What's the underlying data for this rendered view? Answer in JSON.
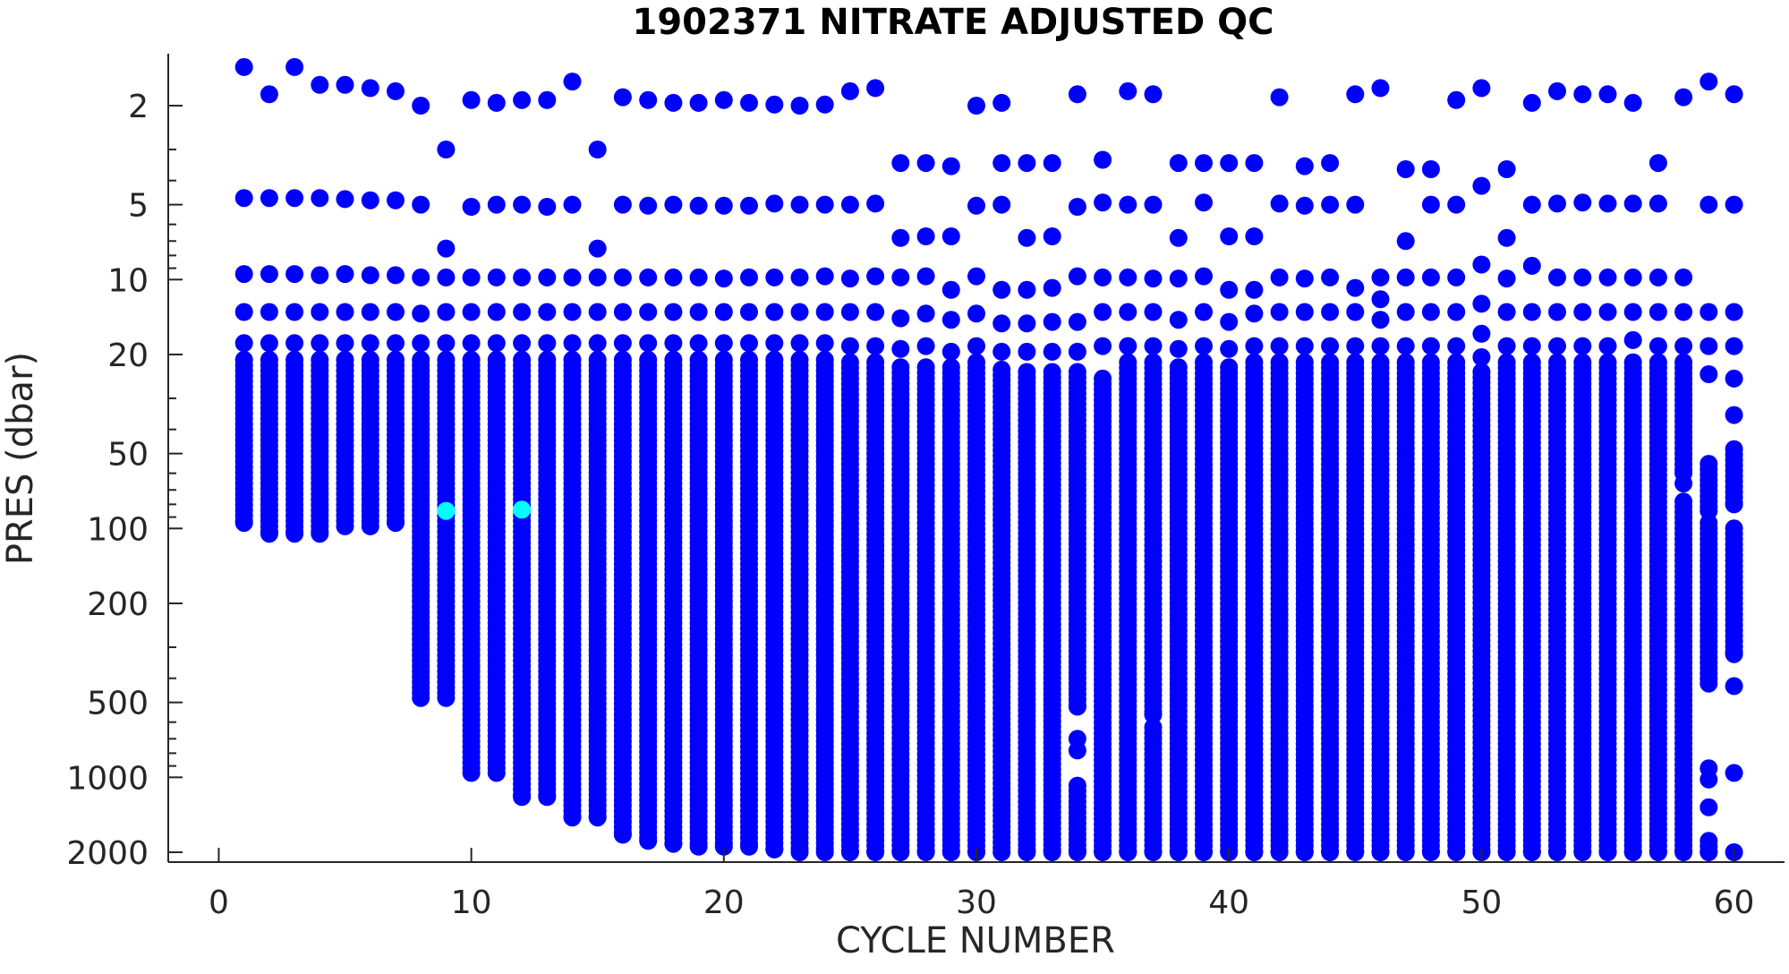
{
  "chart_data": {
    "type": "scatter",
    "title": "1902371  NITRATE ADJUSTED QC",
    "xlabel": "CYCLE NUMBER",
    "ylabel": "PRES (dbar)",
    "xlim": [
      -2,
      62
    ],
    "ylim": [
      1,
      2100
    ],
    "y_scale": "log",
    "y_reversed": true,
    "grid": false,
    "x_ticks": [
      0,
      10,
      20,
      30,
      40,
      50,
      60
    ],
    "x_tick_labels": [
      "0",
      "10",
      "20",
      "30",
      "40",
      "50",
      "60"
    ],
    "y_ticks": [
      2,
      5,
      10,
      20,
      50,
      100,
      200,
      500,
      1000,
      2000
    ],
    "y_tick_labels": [
      "2",
      "5",
      "10",
      "20",
      "50",
      "100",
      "200",
      "500",
      "1000",
      "2000"
    ],
    "colors": {
      "qc_good": "#0000ff",
      "qc_flagged": "#00ffff"
    },
    "profiles": [
      {
        "cycle": 1,
        "surface": [
          1.4,
          4.7
        ],
        "top": [
          9.5,
          13.5,
          18
        ],
        "dense": [
          21,
          95
        ]
      },
      {
        "cycle": 2,
        "surface": [
          1.8,
          4.7
        ],
        "top": [
          9.5,
          13.5,
          18
        ],
        "dense": [
          21,
          105
        ]
      },
      {
        "cycle": 3,
        "surface": [
          1.4,
          4.7
        ],
        "top": [
          9.5,
          13.5,
          18
        ],
        "dense": [
          21,
          105
        ]
      },
      {
        "cycle": 4,
        "surface": [
          1.65,
          4.7
        ],
        "top": [
          9.6,
          13.5,
          18
        ],
        "dense": [
          21,
          105
        ]
      },
      {
        "cycle": 5,
        "surface": [
          1.65,
          4.75
        ],
        "top": [
          9.5,
          13.5,
          18
        ],
        "dense": [
          21,
          98
        ]
      },
      {
        "cycle": 6,
        "surface": [
          1.7,
          4.8
        ],
        "top": [
          9.6,
          13.5,
          18
        ],
        "dense": [
          21,
          98
        ]
      },
      {
        "cycle": 7,
        "surface": [
          1.75,
          4.8
        ],
        "top": [
          9.6,
          13.5,
          18
        ],
        "dense": [
          21,
          95
        ]
      },
      {
        "cycle": 8,
        "surface": [
          2.0,
          5.0
        ],
        "top": [
          9.8,
          13.7,
          18
        ],
        "dense": [
          21,
          480
        ]
      },
      {
        "cycle": 9,
        "surface": [
          3.0,
          7.5
        ],
        "top": [
          9.8,
          13.5,
          18
        ],
        "dense": [
          21,
          480
        ]
      },
      {
        "cycle": 10,
        "surface": [
          1.9,
          5.1
        ],
        "top": [
          9.8,
          13.5,
          18
        ],
        "dense": [
          21,
          960
        ]
      },
      {
        "cycle": 11,
        "surface": [
          1.95,
          5.0
        ],
        "top": [
          9.8,
          13.5,
          18
        ],
        "dense": [
          21,
          960
        ]
      },
      {
        "cycle": 12,
        "surface": [
          1.9,
          5.0
        ],
        "top": [
          9.8,
          13.5,
          18
        ],
        "dense": [
          21,
          1200
        ]
      },
      {
        "cycle": 13,
        "surface": [
          1.9,
          5.1
        ],
        "top": [
          9.8,
          13.5,
          18
        ],
        "dense": [
          21,
          1200
        ]
      },
      {
        "cycle": 14,
        "surface": [
          1.6,
          5.0
        ],
        "top": [
          9.8,
          13.5,
          18
        ],
        "dense": [
          21,
          1450
        ]
      },
      {
        "cycle": 15,
        "surface": [
          3.0,
          7.5
        ],
        "top": [
          9.8,
          13.5,
          18
        ],
        "dense": [
          21,
          1450
        ]
      },
      {
        "cycle": 16,
        "surface": [
          1.85,
          5.0
        ],
        "top": [
          9.8,
          13.5,
          18
        ],
        "dense": [
          21,
          1700
        ]
      },
      {
        "cycle": 17,
        "surface": [
          1.9,
          5.05
        ],
        "top": [
          9.8,
          13.5,
          18
        ],
        "dense": [
          21,
          1800
        ]
      },
      {
        "cycle": 18,
        "surface": [
          1.95,
          5.0
        ],
        "top": [
          9.8,
          13.5,
          18
        ],
        "dense": [
          21,
          1850
        ]
      },
      {
        "cycle": 19,
        "surface": [
          1.95,
          5.05
        ],
        "top": [
          9.8,
          13.5,
          18
        ],
        "dense": [
          21,
          1900
        ]
      },
      {
        "cycle": 20,
        "surface": [
          1.9,
          5.05
        ],
        "top": [
          9.9,
          13.5,
          18
        ],
        "dense": [
          21,
          1900
        ]
      },
      {
        "cycle": 21,
        "surface": [
          1.95,
          5.05
        ],
        "top": [
          9.8,
          13.5,
          18
        ],
        "dense": [
          21,
          1900
        ]
      },
      {
        "cycle": 22,
        "surface": [
          1.98,
          4.95
        ],
        "top": [
          9.8,
          13.5,
          18
        ],
        "dense": [
          21,
          1950
        ]
      },
      {
        "cycle": 23,
        "surface": [
          2.0,
          5.0
        ],
        "top": [
          9.8,
          13.5,
          18
        ],
        "dense": [
          21,
          2000
        ]
      },
      {
        "cycle": 24,
        "surface": [
          1.98,
          5.0
        ],
        "top": [
          9.7,
          13.5,
          18
        ],
        "dense": [
          21,
          2000
        ]
      },
      {
        "cycle": 25,
        "surface": [
          1.75,
          5.0
        ],
        "top": [
          9.9,
          13.5,
          18.5
        ],
        "dense": [
          21.5,
          2000
        ]
      },
      {
        "cycle": 26,
        "surface": [
          1.7,
          4.95
        ],
        "top": [
          9.7,
          13.5,
          18.5
        ],
        "dense": [
          21.5,
          2000
        ]
      },
      {
        "cycle": 27,
        "surface": [
          3.4,
          6.8
        ],
        "top": [
          9.8,
          14.3,
          19
        ],
        "dense": [
          22.5,
          2000
        ]
      },
      {
        "cycle": 28,
        "surface": [
          3.4,
          6.7
        ],
        "top": [
          9.7,
          13.7,
          18.5
        ],
        "dense": [
          22.5,
          2000
        ]
      },
      {
        "cycle": 29,
        "surface": [
          3.5,
          6.7,
          11
        ],
        "top": [
          14.5,
          19.5
        ],
        "dense": [
          22.5,
          2000
        ]
      },
      {
        "cycle": 30,
        "surface": [
          2.0,
          5.05
        ],
        "top": [
          9.7,
          13.7,
          18.5
        ],
        "dense": [
          21.5,
          2000
        ]
      },
      {
        "cycle": 31,
        "surface": [
          1.95,
          5.0,
          3.4
        ],
        "top": [
          11,
          15,
          19.5
        ],
        "dense": [
          23,
          2000
        ]
      },
      {
        "cycle": 32,
        "surface": [
          3.4,
          6.8
        ],
        "top": [
          11,
          15,
          19.5
        ],
        "dense": [
          23.5,
          2000
        ]
      },
      {
        "cycle": 33,
        "surface": [
          3.4,
          6.7
        ],
        "top": [
          10.8,
          14.8,
          19.5
        ],
        "dense": [
          23.5,
          2000
        ]
      },
      {
        "cycle": 34,
        "surface": [
          1.8,
          5.1
        ],
        "top": [
          9.7,
          14.8,
          19.5
        ],
        "dense": [
          23.5,
          520
        ],
        "extra": [
          700,
          780
        ],
        "deep": [
          1080,
          2000
        ]
      },
      {
        "cycle": 35,
        "surface": [
          3.3,
          4.9
        ],
        "top": [
          9.8,
          13.5,
          18.5
        ],
        "dense": [
          25,
          2000
        ]
      },
      {
        "cycle": 36,
        "surface": [
          1.75,
          5.0
        ],
        "top": [
          9.8,
          13.5,
          18.5
        ],
        "dense": [
          21.5,
          2000
        ]
      },
      {
        "cycle": 37,
        "surface": [
          1.8,
          5.0
        ],
        "top": [
          9.9,
          13.5,
          18.5
        ],
        "dense": [
          21.5,
          560
        ],
        "deep": [
          630,
          2000
        ]
      },
      {
        "cycle": 38,
        "surface": [
          3.4,
          6.8
        ],
        "top": [
          9.9,
          14.5,
          19
        ],
        "dense": [
          22.5,
          2000
        ]
      },
      {
        "cycle": 39,
        "surface": [
          3.4,
          4.9
        ],
        "top": [
          9.7,
          13.5,
          18.5
        ],
        "dense": [
          21.5,
          2000
        ]
      },
      {
        "cycle": 40,
        "surface": [
          3.4,
          6.7
        ],
        "top": [
          11,
          14.8,
          19
        ],
        "dense": [
          22.5,
          2000
        ]
      },
      {
        "cycle": 41,
        "surface": [
          3.4,
          6.7
        ],
        "top": [
          11,
          13.7,
          18.5
        ],
        "dense": [
          21.5,
          2000
        ]
      },
      {
        "cycle": 42,
        "surface": [
          1.85,
          4.95
        ],
        "top": [
          9.8,
          13.5,
          18.5
        ],
        "dense": [
          21.5,
          2000
        ]
      },
      {
        "cycle": 43,
        "surface": [
          3.5,
          5.05
        ],
        "top": [
          9.9,
          13.5,
          18.5
        ],
        "dense": [
          21.5,
          2000
        ]
      },
      {
        "cycle": 44,
        "surface": [
          3.4,
          5.0
        ],
        "top": [
          9.8,
          13.5,
          18.5
        ],
        "dense": [
          21.5,
          2000
        ]
      },
      {
        "cycle": 45,
        "surface": [
          1.8,
          5.0
        ],
        "top": [
          10.8,
          13.5,
          18.5
        ],
        "dense": [
          21.5,
          2000
        ]
      },
      {
        "cycle": 46,
        "surface": [
          1.7,
          9.8
        ],
        "top": [
          12,
          14.5,
          18.5
        ],
        "dense": [
          21.5,
          2000
        ]
      },
      {
        "cycle": 47,
        "surface": [
          3.6,
          7.0
        ],
        "top": [
          9.8,
          13.5,
          18.5
        ],
        "dense": [
          21.5,
          2000
        ]
      },
      {
        "cycle": 48,
        "surface": [
          3.6,
          5.0
        ],
        "top": [
          9.8,
          13.5,
          18.5
        ],
        "dense": [
          21.5,
          2000
        ]
      },
      {
        "cycle": 49,
        "surface": [
          1.9,
          5.0
        ],
        "top": [
          9.8,
          13.5,
          18.5
        ],
        "dense": [
          21.5,
          2000
        ]
      },
      {
        "cycle": 50,
        "surface": [
          1.7,
          4.2,
          8.7
        ],
        "top": [
          12.5,
          16.5,
          20.5
        ],
        "dense": [
          23.5,
          2000
        ]
      },
      {
        "cycle": 51,
        "surface": [
          3.6,
          6.8
        ],
        "top": [
          9.9,
          13.5,
          18.5
        ],
        "dense": [
          21.5,
          2000
        ]
      },
      {
        "cycle": 52,
        "surface": [
          1.95,
          5.0
        ],
        "top": [
          8.8,
          13.5,
          18.5
        ],
        "dense": [
          21.5,
          2000
        ]
      },
      {
        "cycle": 53,
        "surface": [
          1.75,
          4.95
        ],
        "top": [
          9.8,
          13.5,
          18.5
        ],
        "dense": [
          21.5,
          2000
        ]
      },
      {
        "cycle": 54,
        "surface": [
          1.8,
          4.9
        ],
        "top": [
          9.8,
          13.5,
          18.5
        ],
        "dense": [
          21.5,
          2000
        ]
      },
      {
        "cycle": 55,
        "surface": [
          1.8,
          4.95
        ],
        "top": [
          9.8,
          13.5,
          18.5
        ],
        "dense": [
          21.5,
          2000
        ]
      },
      {
        "cycle": 56,
        "surface": [
          1.95,
          4.95
        ],
        "top": [
          9.8,
          13.5,
          17.5
        ],
        "dense": [
          21.5,
          2000
        ]
      },
      {
        "cycle": 57,
        "surface": [
          3.4,
          4.95
        ],
        "top": [
          9.8,
          13.5,
          18.5
        ],
        "dense": [
          21.5,
          2000
        ]
      },
      {
        "cycle": 58,
        "surface": [
          1.85
        ],
        "top": [
          9.8,
          13.5,
          18.5
        ],
        "dense": [
          21.5,
          60
        ],
        "extra": [
          66
        ],
        "deep": [
          78,
          2000
        ]
      },
      {
        "cycle": 59,
        "surface": [
          1.6,
          5.0
        ],
        "top": [
          13.5,
          18.5,
          24
        ],
        "dense": [
          55,
          85
        ],
        "deep2": [
          95,
          420
        ],
        "extra": [
          920,
          1020,
          1320
        ],
        "deep": [
          1800,
          2000
        ]
      },
      {
        "cycle": 60,
        "surface": [
          1.8,
          5.0
        ],
        "top": [
          13.5,
          18.5,
          25,
          35
        ],
        "dense": [
          48,
          80
        ],
        "deep2": [
          100,
          320
        ],
        "extra": [
          430,
          960,
          2000
        ]
      }
    ],
    "flagged_points": [
      {
        "cycle": 9,
        "pres": 85
      },
      {
        "cycle": 12,
        "pres": 84
      }
    ]
  }
}
